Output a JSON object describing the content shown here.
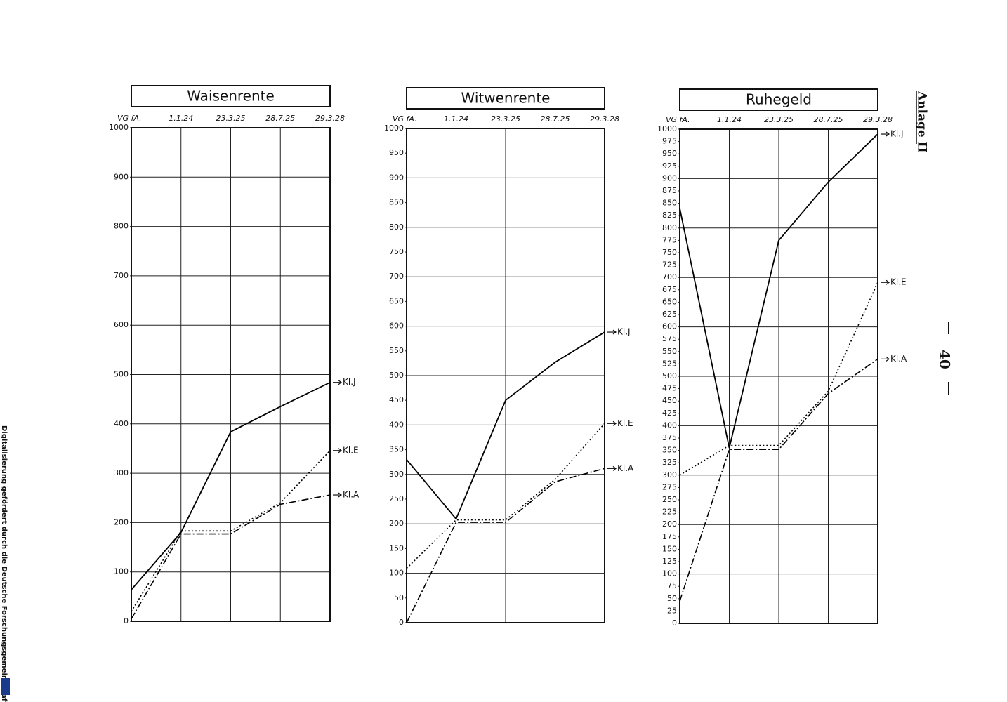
{
  "chart_data": [
    {
      "type": "line",
      "title": "Waisenrente",
      "categories": [
        "VG fA.",
        "1.1.24",
        "23.3.25",
        "28.7.25",
        "29.3.28"
      ],
      "ylim": [
        0,
        1000
      ],
      "yticks": [
        0,
        100,
        200,
        300,
        400,
        500,
        600,
        700,
        800,
        900,
        1000
      ],
      "ygrid": [
        0,
        100,
        200,
        300,
        400,
        500,
        600,
        700,
        800,
        900,
        1000
      ],
      "series": [
        {
          "name": "Kl.J",
          "color": "#000000",
          "style": "solid",
          "values": [
            64,
            180,
            384,
            435,
            484
          ]
        },
        {
          "name": "Kl.E",
          "color": "#000000",
          "style": "dotted",
          "values": [
            20,
            183,
            183,
            240,
            346
          ]
        },
        {
          "name": "Kl.A",
          "color": "#000000",
          "style": "dashdot",
          "values": [
            5,
            177,
            177,
            237,
            256
          ]
        }
      ]
    },
    {
      "type": "line",
      "title": "Witwenrente",
      "categories": [
        "VG fA.",
        "1.1.24",
        "23.3.25",
        "28.7.25",
        "29.3.28"
      ],
      "ylim": [
        0,
        1000
      ],
      "yticks": [
        0,
        50,
        100,
        150,
        200,
        250,
        300,
        350,
        400,
        450,
        500,
        550,
        600,
        650,
        700,
        750,
        800,
        850,
        900,
        950,
        1000
      ],
      "ygrid": [
        0,
        100,
        200,
        300,
        400,
        500,
        600,
        700,
        800,
        900,
        1000
      ],
      "series": [
        {
          "name": "Kl.J",
          "color": "#000000",
          "style": "solid",
          "values": [
            330,
            210,
            450,
            527,
            588
          ]
        },
        {
          "name": "Kl.E",
          "color": "#000000",
          "style": "dotted",
          "values": [
            110,
            208,
            208,
            290,
            403
          ]
        },
        {
          "name": "Kl.A",
          "color": "#000000",
          "style": "dashdot",
          "values": [
            0,
            203,
            203,
            285,
            312
          ]
        }
      ]
    },
    {
      "type": "line",
      "title": "Ruhegeld",
      "categories": [
        "VG fA.",
        "1.1.24",
        "23.3.25",
        "28.7.25",
        "29.3.28"
      ],
      "ylim": [
        0,
        1000
      ],
      "yticks": [
        0,
        25,
        50,
        75,
        100,
        125,
        150,
        175,
        200,
        225,
        250,
        275,
        300,
        325,
        350,
        375,
        400,
        425,
        450,
        475,
        500,
        525,
        550,
        575,
        600,
        625,
        650,
        675,
        700,
        725,
        750,
        775,
        800,
        825,
        850,
        875,
        900,
        925,
        950,
        975,
        1000
      ],
      "ygrid": [
        0,
        100,
        200,
        300,
        400,
        500,
        600,
        700,
        800,
        900,
        1000
      ],
      "series": [
        {
          "name": "Kl.J",
          "color": "#000000",
          "style": "solid",
          "values": [
            840,
            355,
            775,
            893,
            990
          ]
        },
        {
          "name": "Kl.E",
          "color": "#000000",
          "style": "dotted",
          "values": [
            300,
            360,
            360,
            470,
            690
          ]
        },
        {
          "name": "Kl.A",
          "color": "#000000",
          "style": "dashdot",
          "values": [
            45,
            352,
            352,
            465,
            535
          ]
        }
      ]
    }
  ],
  "appendix": "Anlage II",
  "page_number": "40",
  "credit": "Digitalisierung gefördert durch die Deutsche Forschungsgemeinschaft -"
}
